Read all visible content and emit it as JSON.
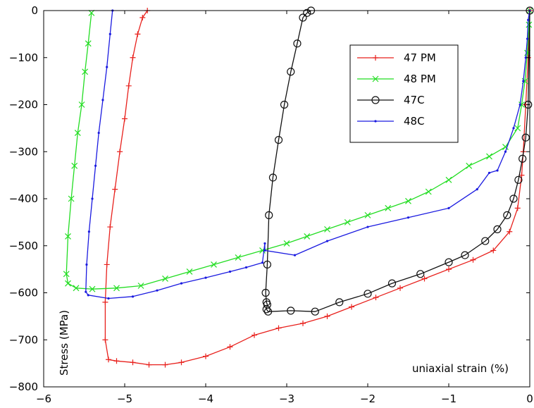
{
  "chart_data": {
    "type": "line",
    "title": "",
    "xlabel": "uniaxial strain (%)",
    "ylabel": "Stress (MPa)",
    "xlim": [
      -6,
      0
    ],
    "ylim": [
      -800,
      0
    ],
    "xticks": [
      -6,
      -5,
      -4,
      -3,
      -2,
      -1,
      0
    ],
    "yticks": [
      0,
      -100,
      -200,
      -300,
      -400,
      -500,
      -600,
      -700,
      -800
    ],
    "xtick_labels": [
      "−6",
      "−5",
      "−4",
      "−3",
      "−2",
      "−1",
      "0"
    ],
    "ytick_labels": [
      "0",
      "−100",
      "−200",
      "−300",
      "−400",
      "−500",
      "−600",
      "−700",
      "−800"
    ],
    "grid": false,
    "legend_position": "top-right",
    "series": [
      {
        "name": "47 PM",
        "color": "#e8201c",
        "marker": "plus",
        "x": [
          0,
          -0.02,
          -0.05,
          -0.08,
          -0.1,
          -0.15,
          -0.25,
          -0.45,
          -0.7,
          -1.0,
          -1.3,
          -1.6,
          -1.9,
          -2.2,
          -2.5,
          -2.8,
          -3.1,
          -3.4,
          -3.7,
          -4.0,
          -4.3,
          -4.5,
          -4.7,
          -4.9,
          -5.1,
          -5.2,
          -5.24,
          -5.24,
          -5.22,
          -5.18,
          -5.12,
          -5.06,
          -5.0,
          -4.95,
          -4.9,
          -4.84,
          -4.78,
          -4.72
        ],
        "y": [
          0,
          -100,
          -200,
          -300,
          -350,
          -420,
          -470,
          -510,
          -530,
          -550,
          -570,
          -590,
          -610,
          -630,
          -650,
          -665,
          -675,
          -690,
          -715,
          -735,
          -748,
          -753,
          -753,
          -748,
          -745,
          -742,
          -700,
          -620,
          -540,
          -460,
          -380,
          -300,
          -230,
          -160,
          -100,
          -50,
          -15,
          0
        ]
      },
      {
        "name": "48 PM",
        "color": "#22dd22",
        "marker": "x",
        "x": [
          0,
          -0.01,
          -0.03,
          -0.06,
          -0.1,
          -0.15,
          -0.3,
          -0.5,
          -0.75,
          -1.0,
          -1.25,
          -1.5,
          -1.75,
          -2.0,
          -2.25,
          -2.5,
          -2.75,
          -3.0,
          -3.3,
          -3.6,
          -3.9,
          -4.2,
          -4.5,
          -4.8,
          -5.1,
          -5.4,
          -5.6,
          -5.7,
          -5.72,
          -5.7,
          -5.66,
          -5.62,
          -5.58,
          -5.53,
          -5.49,
          -5.45,
          -5.41
        ],
        "y": [
          0,
          -30,
          -90,
          -150,
          -200,
          -250,
          -290,
          -310,
          -330,
          -360,
          -385,
          -405,
          -420,
          -435,
          -450,
          -465,
          -480,
          -495,
          -510,
          -525,
          -540,
          -555,
          -570,
          -585,
          -590,
          -592,
          -590,
          -580,
          -560,
          -480,
          -400,
          -330,
          -260,
          -200,
          -130,
          -70,
          -5
        ]
      },
      {
        "name": "47C",
        "color": "#111111",
        "marker": "circle",
        "x": [
          -2.7,
          -2.75,
          -2.8,
          -2.87,
          -2.95,
          -3.03,
          -3.1,
          -3.17,
          -3.22,
          -3.24,
          -3.26,
          -3.25,
          -3.24,
          -3.25,
          -3.23,
          -2.95,
          -2.65,
          -2.35,
          -2.0,
          -1.7,
          -1.35,
          -1.0,
          -0.8,
          -0.55,
          -0.4,
          -0.28,
          -0.2,
          -0.14,
          -0.09,
          -0.05,
          -0.02,
          0.0
        ],
        "y": [
          0,
          -5,
          -15,
          -70,
          -130,
          -200,
          -275,
          -355,
          -435,
          -540,
          -600,
          -620,
          -625,
          -635,
          -640,
          -638,
          -640,
          -620,
          -602,
          -580,
          -560,
          -535,
          -520,
          -490,
          -465,
          -435,
          -400,
          -360,
          -315,
          -270,
          -200,
          0
        ]
      },
      {
        "name": "48C",
        "color": "#1a1ae0",
        "marker": "dot",
        "x": [
          -5.15,
          -5.18,
          -5.22,
          -5.27,
          -5.32,
          -5.36,
          -5.4,
          -5.44,
          -5.47,
          -5.48,
          -5.45,
          -5.2,
          -4.9,
          -4.6,
          -4.3,
          -4.0,
          -3.7,
          -3.5,
          -3.3,
          -3.27,
          -3.27,
          -2.9,
          -2.5,
          -2.0,
          -1.5,
          -1.0,
          -0.65,
          -0.5,
          -0.4,
          -0.3,
          -0.2,
          -0.12,
          -0.08,
          -0.05,
          -0.03,
          -0.02,
          0.0
        ],
        "y": [
          0,
          -50,
          -120,
          -190,
          -260,
          -330,
          -400,
          -470,
          -540,
          -598,
          -605,
          -612,
          -608,
          -595,
          -580,
          -568,
          -555,
          -546,
          -536,
          -495,
          -510,
          -520,
          -490,
          -460,
          -440,
          -420,
          -380,
          -345,
          -340,
          -300,
          -250,
          -200,
          -150,
          -100,
          -60,
          -20,
          0
        ]
      }
    ]
  }
}
